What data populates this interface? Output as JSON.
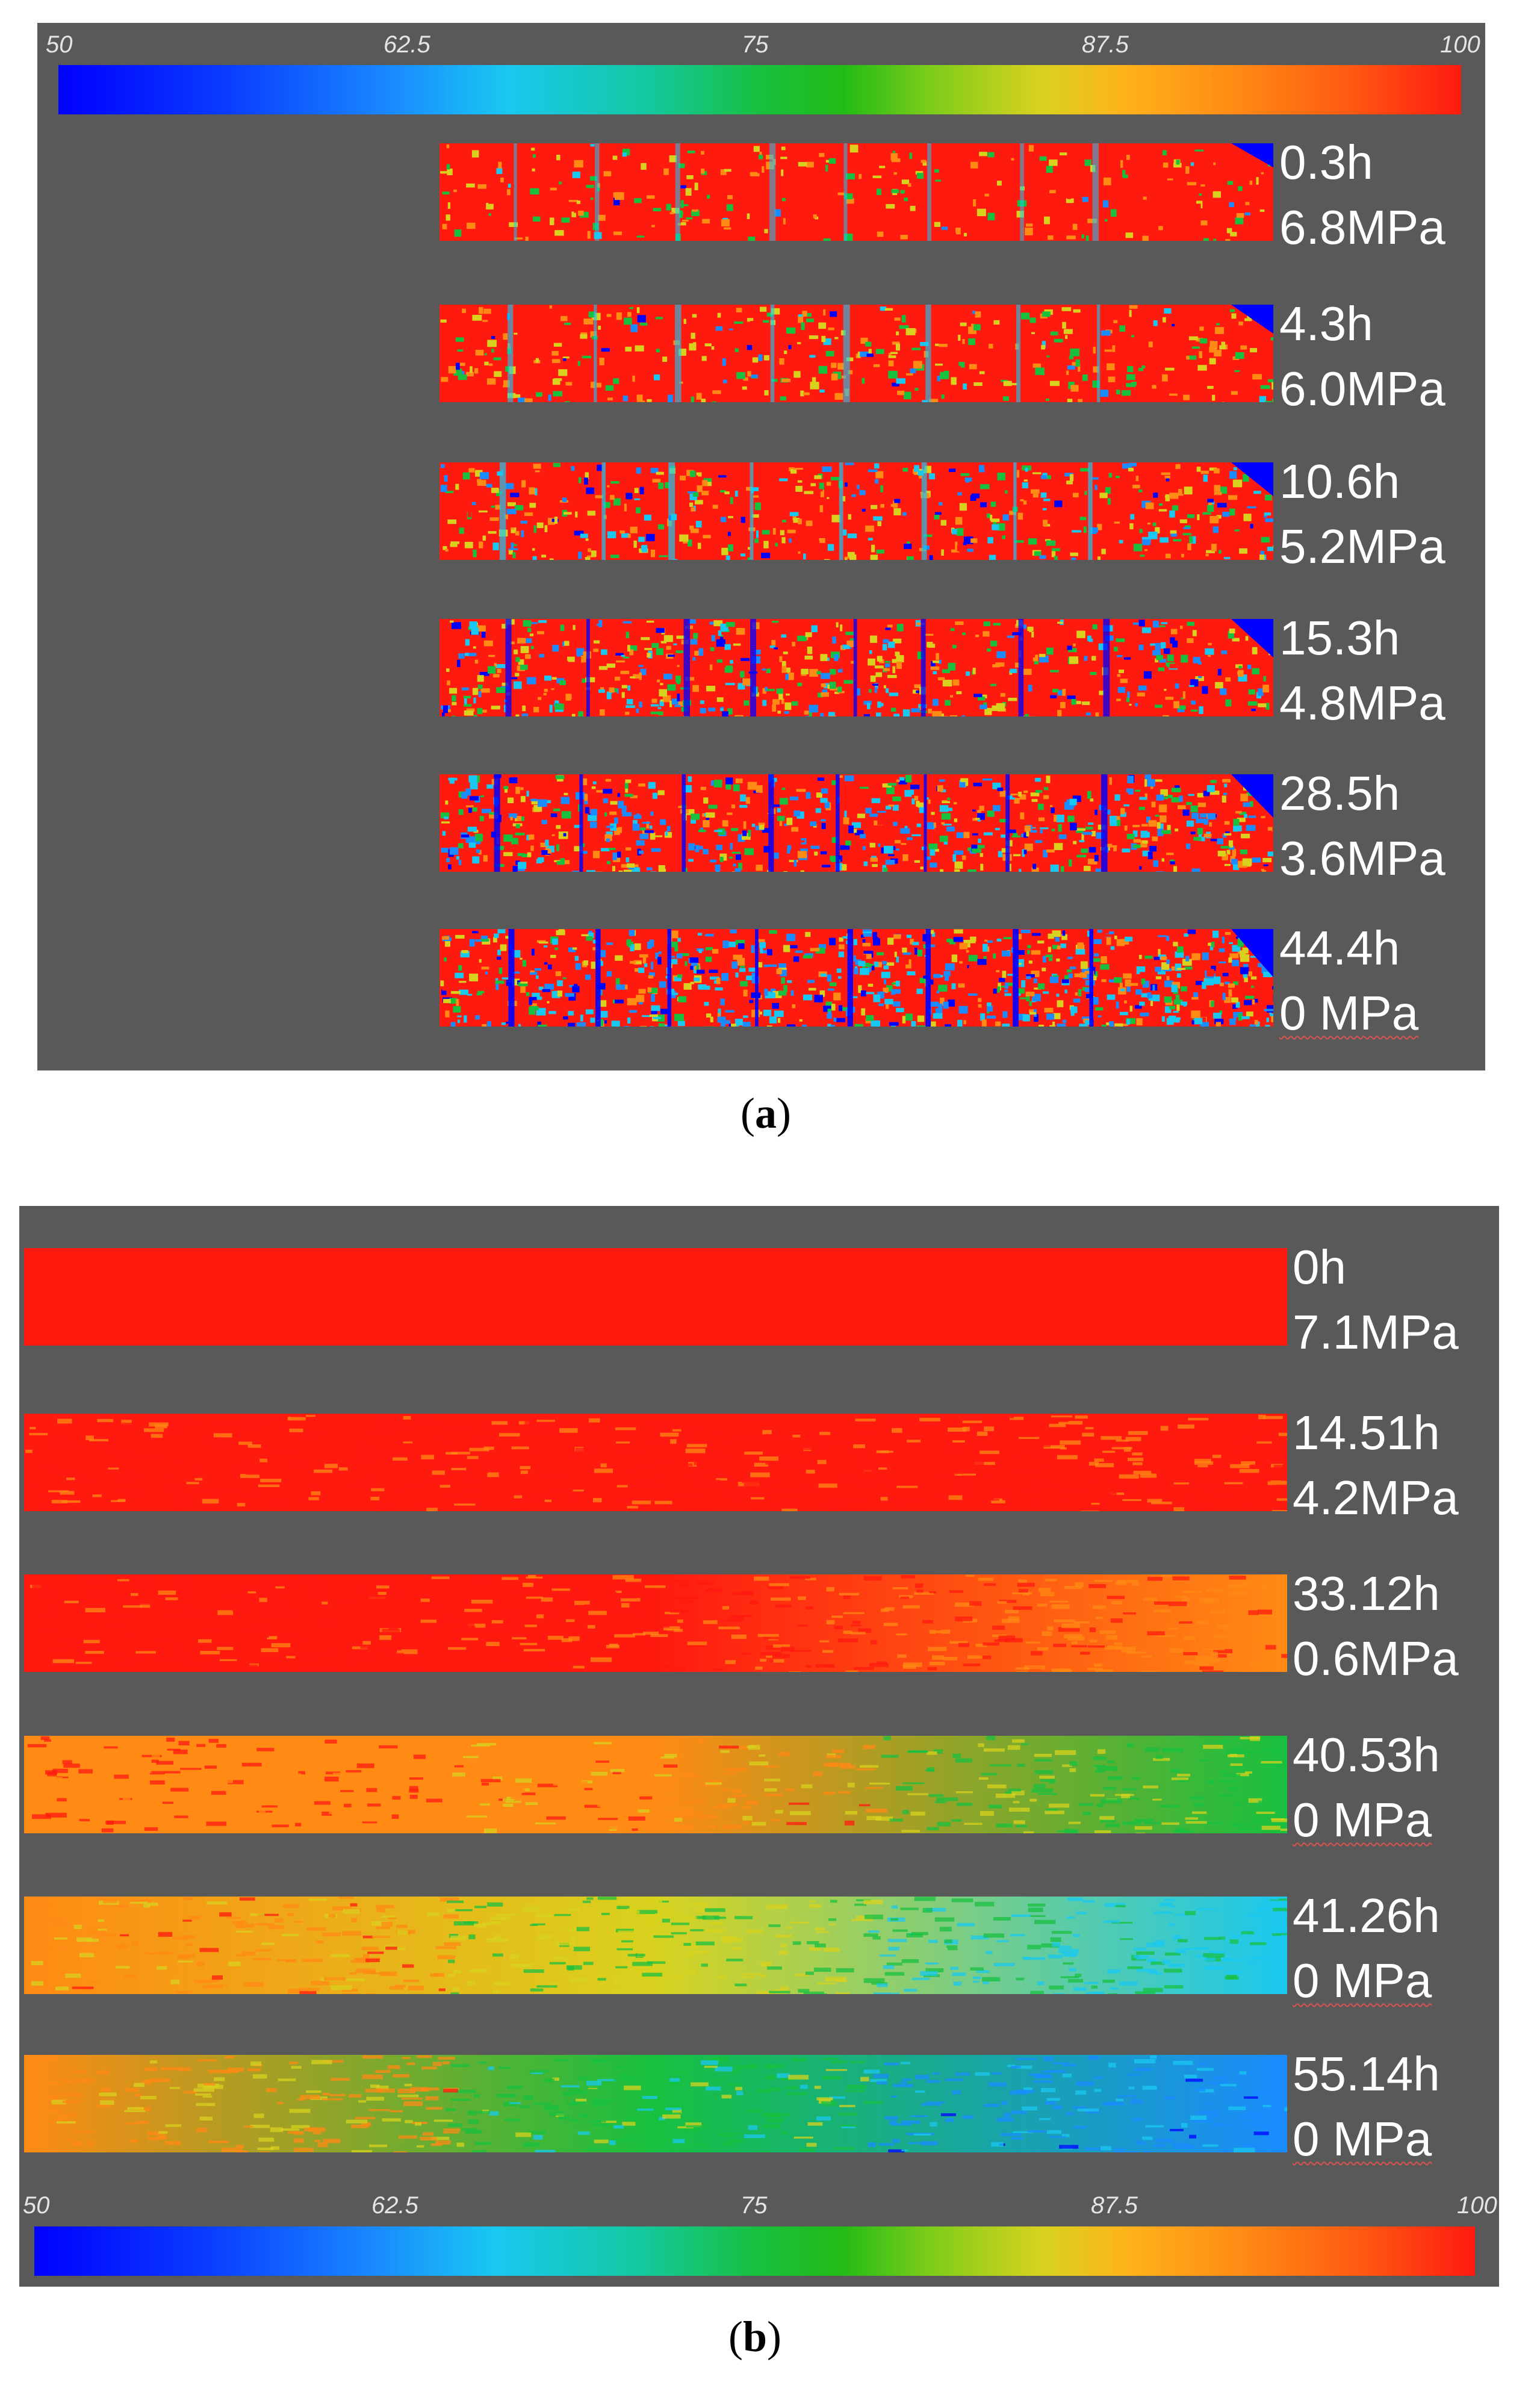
{
  "panel_a": {
    "caption_letter": "a",
    "colorbar_ticks": [
      "50",
      "62.5",
      "75",
      "87.5",
      "100"
    ],
    "rows": [
      {
        "time": "0.3h",
        "pressure": "6.8MPa"
      },
      {
        "time": "4.3h",
        "pressure": "6.0MPa"
      },
      {
        "time": "10.6h",
        "pressure": "5.2MPa"
      },
      {
        "time": "15.3h",
        "pressure": "4.8MPa"
      },
      {
        "time": "28.5h",
        "pressure": "3.6MPa"
      },
      {
        "time": "44.4h",
        "pressure": "0 MPa"
      }
    ]
  },
  "panel_b": {
    "caption_letter": "b",
    "colorbar_ticks": [
      "50",
      "62.5",
      "75",
      "87.5",
      "100"
    ],
    "rows": [
      {
        "time": "0h",
        "pressure": "7.1MPa"
      },
      {
        "time": "14.51h",
        "pressure": "4.2MPa"
      },
      {
        "time": "33.12h",
        "pressure": "0.6MPa"
      },
      {
        "time": "40.53h",
        "pressure": "0 MPa"
      },
      {
        "time": "41.26h",
        "pressure": "0 MPa"
      },
      {
        "time": "55.14h",
        "pressure": "0 MPa"
      }
    ]
  },
  "colors": {
    "panel_bg": "#595959",
    "scale": [
      "#0000ff",
      "#1a8cff",
      "#19c8f0",
      "#18c040",
      "#d8d21e",
      "#ff8a14",
      "#ff1a10"
    ]
  }
}
